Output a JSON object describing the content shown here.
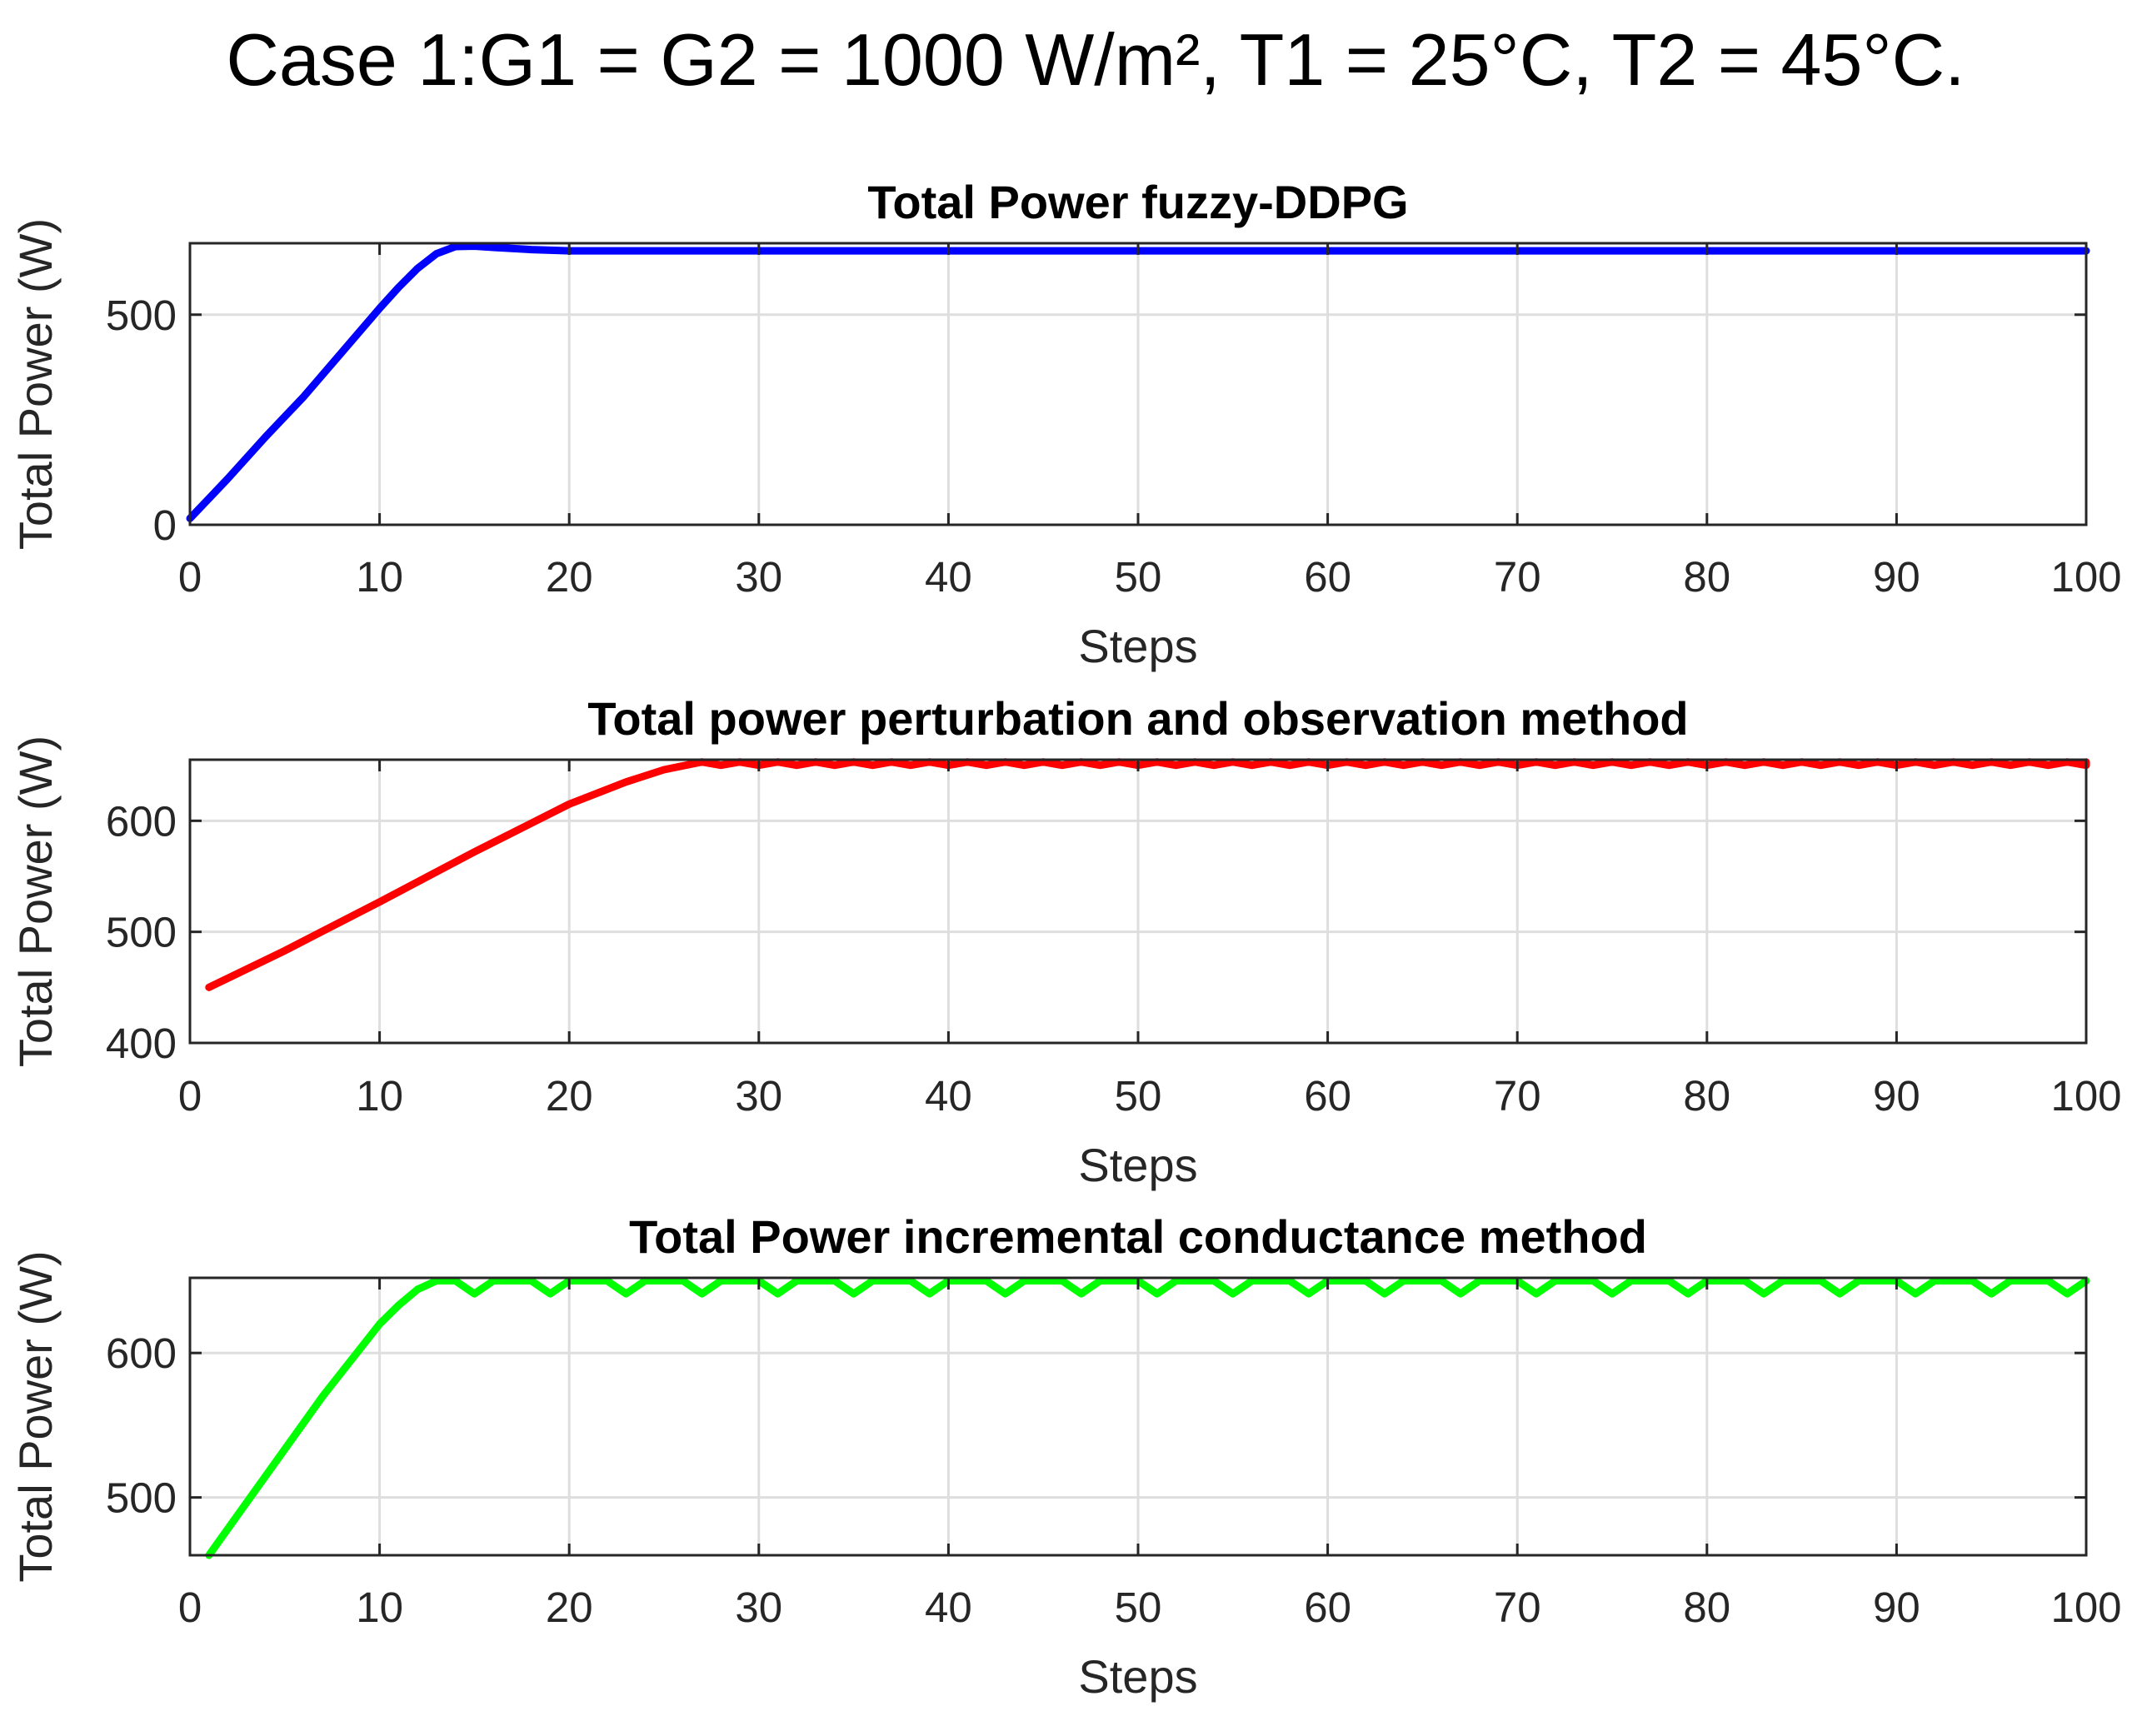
{
  "figure_title": "Case 1:G1 = G2 = 1000 W/m², T1 = 25°C, T2 = 45°C.",
  "chart_data": [
    {
      "type": "line",
      "title": "Total Power fuzzy-DDPG",
      "xlabel": "Steps",
      "ylabel": "Total Power (W)",
      "xlim": [
        0,
        100
      ],
      "ylim": [
        0,
        670
      ],
      "xticks": [
        0,
        10,
        20,
        30,
        40,
        50,
        60,
        70,
        80,
        90,
        100
      ],
      "yticks": [
        0,
        500
      ],
      "grid": true,
      "color": "#0000ff",
      "series": [
        {
          "name": "fuzzy-DDPG",
          "x": [
            0,
            2,
            4,
            6,
            8,
            10,
            11,
            12,
            13,
            14,
            15,
            16,
            18,
            20,
            25,
            30,
            40,
            50,
            60,
            70,
            80,
            90,
            100
          ],
          "y": [
            15,
            110,
            210,
            305,
            410,
            515,
            565,
            610,
            645,
            662,
            663,
            660,
            655,
            652,
            652,
            652,
            652,
            652,
            652,
            652,
            652,
            652,
            652
          ]
        }
      ]
    },
    {
      "type": "line",
      "title": "Total power perturbation and observation method",
      "xlabel": "Steps",
      "ylabel": "Total Power (W)",
      "xlim": [
        0,
        100
      ],
      "ylim": [
        400,
        655
      ],
      "xticks": [
        0,
        10,
        20,
        30,
        40,
        50,
        60,
        70,
        80,
        90,
        100
      ],
      "yticks": [
        400,
        500,
        600
      ],
      "grid": true,
      "color": "#ff0000",
      "series": [
        {
          "name": "perturbation and observation",
          "x": [
            1,
            5,
            10,
            15,
            20,
            23,
            25,
            27,
            100
          ],
          "y": [
            450,
            483,
            527,
            572,
            615,
            635,
            646,
            653,
            653
          ],
          "ripple": {
            "start": 27,
            "period": 2,
            "amplitude": 1.5
          }
        }
      ]
    },
    {
      "type": "line",
      "title": "Total Power incremental conductance method",
      "xlabel": "Steps",
      "ylabel": "Total Power (W)",
      "xlim": [
        0,
        100
      ],
      "ylim": [
        460,
        652
      ],
      "xticks": [
        0,
        10,
        20,
        30,
        40,
        50,
        60,
        70,
        80,
        90,
        100
      ],
      "yticks": [
        500,
        600
      ],
      "grid": true,
      "color": "#00ff00",
      "series": [
        {
          "name": "incremental conductance",
          "x": [
            1,
            4,
            7,
            10,
            11,
            12,
            13,
            14,
            15,
            16,
            17,
            18,
            19,
            20,
            21,
            22,
            23,
            24,
            25,
            26,
            27,
            28,
            29,
            30,
            31,
            32,
            33,
            34,
            35,
            36,
            37,
            38,
            39,
            40,
            41,
            42,
            43,
            44,
            45,
            46,
            47,
            48,
            49,
            50,
            51,
            52,
            53,
            54,
            55,
            56,
            57,
            58,
            59,
            60,
            61,
            62,
            63,
            64,
            65,
            66,
            67,
            68,
            69,
            70,
            71,
            72,
            73,
            74,
            75,
            76,
            77,
            78,
            79,
            80,
            81,
            82,
            83,
            84,
            85,
            86,
            87,
            88,
            89,
            90,
            91,
            92,
            93,
            94,
            95,
            96,
            97,
            98,
            99,
            100
          ],
          "y": [
            460,
            515,
            570,
            620,
            633,
            644,
            650,
            650,
            641,
            650,
            650,
            650,
            641,
            650,
            650,
            650,
            641,
            650,
            650,
            650,
            641,
            650,
            650,
            650,
            641,
            650,
            650,
            650,
            641,
            650,
            650,
            650,
            641,
            650,
            650,
            650,
            641,
            650,
            650,
            650,
            641,
            650,
            650,
            650,
            641,
            650,
            650,
            650,
            641,
            650,
            650,
            650,
            641,
            650,
            650,
            650,
            641,
            650,
            650,
            650,
            641,
            650,
            650,
            650,
            641,
            650,
            650,
            650,
            641,
            650,
            650,
            650,
            641,
            650,
            650,
            650,
            641,
            650,
            650,
            650,
            641,
            650,
            650,
            650,
            641,
            650,
            650,
            650,
            641,
            650,
            650,
            650,
            641,
            650
          ]
        }
      ]
    }
  ]
}
